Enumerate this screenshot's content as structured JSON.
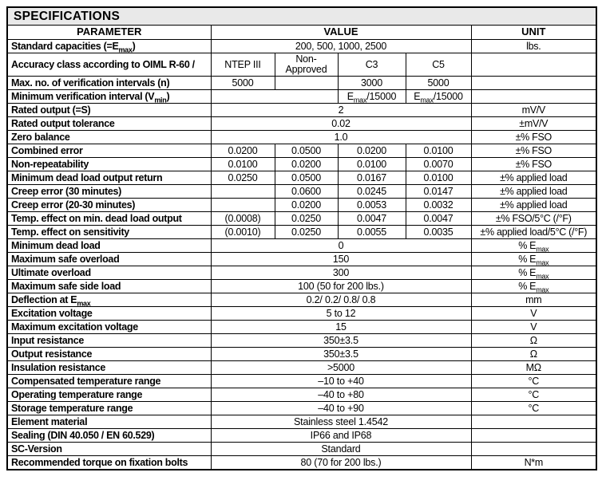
{
  "title": "SPECIFICATIONS",
  "colors": {
    "title_bg": "#e9e9e9",
    "border": "#000000",
    "text": "#000000",
    "page_bg": "#ffffff"
  },
  "table": {
    "headers": {
      "parameter": "PARAMETER",
      "value": "VALUE",
      "unit": "UNIT"
    },
    "rows": [
      {
        "param": "Standard capacities (=E_{max})",
        "cells": [
          {
            "text": "200, 500, 1000, 2500",
            "span": 4
          }
        ],
        "unit": "lbs."
      },
      {
        "param": "Accuracy class according to OIML R-60 /",
        "cells": [
          {
            "text": "NTEP III",
            "span": 1
          },
          {
            "text": "Non-Approved",
            "span": 1,
            "wrap": true
          },
          {
            "text": "C3",
            "span": 1
          },
          {
            "text": "C5",
            "span": 1
          }
        ],
        "unit": ""
      },
      {
        "param": "Max. no. of verification intervals (n)",
        "cells": [
          {
            "text": "5000",
            "span": 1
          },
          {
            "text": "",
            "span": 1
          },
          {
            "text": "3000",
            "span": 1
          },
          {
            "text": "5000",
            "span": 1
          }
        ],
        "unit": ""
      },
      {
        "param": "Minimum verification interval (V_{min})",
        "cells": [
          {
            "text": "",
            "span": 2
          },
          {
            "text": "E_{max}/15000",
            "span": 1
          },
          {
            "text": "E_{max}/15000",
            "span": 1
          }
        ],
        "unit": ""
      },
      {
        "param": "Rated output (=S)",
        "cells": [
          {
            "text": "2",
            "span": 4
          }
        ],
        "unit": "mV/V"
      },
      {
        "param": "Rated output tolerance",
        "cells": [
          {
            "text": "0.02",
            "span": 4
          }
        ],
        "unit": "±mV/V"
      },
      {
        "param": "Zero balance",
        "cells": [
          {
            "text": "1.0",
            "span": 4
          }
        ],
        "unit": "±% FSO"
      },
      {
        "param": "Combined error",
        "cells": [
          {
            "text": "0.0200",
            "span": 1
          },
          {
            "text": "0.0500",
            "span": 1
          },
          {
            "text": "0.0200",
            "span": 1
          },
          {
            "text": "0.0100",
            "span": 1
          }
        ],
        "unit": "±% FSO"
      },
      {
        "param": "Non-repeatability",
        "cells": [
          {
            "text": "0.0100",
            "span": 1
          },
          {
            "text": "0.0200",
            "span": 1
          },
          {
            "text": "0.0100",
            "span": 1
          },
          {
            "text": "0.0070",
            "span": 1
          }
        ],
        "unit": "±% FSO"
      },
      {
        "param": "Minimum dead load output return",
        "cells": [
          {
            "text": "0.0250",
            "span": 1
          },
          {
            "text": "0.0500",
            "span": 1
          },
          {
            "text": "0.0167",
            "span": 1
          },
          {
            "text": "0.0100",
            "span": 1
          }
        ],
        "unit": "±% applied load"
      },
      {
        "param": "Creep error (30 minutes)",
        "cells": [
          {
            "text": "",
            "span": 1
          },
          {
            "text": "0.0600",
            "span": 1
          },
          {
            "text": "0.0245",
            "span": 1
          },
          {
            "text": "0.0147",
            "span": 1
          }
        ],
        "unit": "±% applied load"
      },
      {
        "param": "Creep error (20-30 minutes)",
        "cells": [
          {
            "text": "",
            "span": 1
          },
          {
            "text": "0.0200",
            "span": 1
          },
          {
            "text": "0.0053",
            "span": 1
          },
          {
            "text": "0.0032",
            "span": 1
          }
        ],
        "unit": "±% applied load"
      },
      {
        "param": "Temp. effect on min. dead load output",
        "cells": [
          {
            "text": "(0.0008)",
            "span": 1
          },
          {
            "text": "0.0250",
            "span": 1
          },
          {
            "text": "0.0047",
            "span": 1
          },
          {
            "text": "0.0047",
            "span": 1
          }
        ],
        "unit": "±% FSO/5°C (/°F)"
      },
      {
        "param": "Temp. effect on sensitivity",
        "cells": [
          {
            "text": "(0.0010)",
            "span": 1
          },
          {
            "text": "0.0250",
            "span": 1
          },
          {
            "text": "0.0055",
            "span": 1
          },
          {
            "text": "0.0035",
            "span": 1
          }
        ],
        "unit": "±% applied load/5°C (/°F)"
      },
      {
        "param": "Minimum dead load",
        "cells": [
          {
            "text": "0",
            "span": 4
          }
        ],
        "unit": "% E_{max}"
      },
      {
        "param": "Maximum safe overload",
        "cells": [
          {
            "text": "150",
            "span": 4
          }
        ],
        "unit": "% E_{max}"
      },
      {
        "param": "Ultimate overload",
        "cells": [
          {
            "text": "300",
            "span": 4
          }
        ],
        "unit": "% E_{max}"
      },
      {
        "param": "Maximum safe side load",
        "cells": [
          {
            "text": "100 (50 for 200 lbs.)",
            "span": 4
          }
        ],
        "unit": "% E_{max}"
      },
      {
        "param": "Deflection at E_{max}",
        "cells": [
          {
            "text": "0.2/ 0.2/ 0.8/ 0.8",
            "span": 4
          }
        ],
        "unit": "mm"
      },
      {
        "param": "Excitation voltage",
        "cells": [
          {
            "text": "5 to 12",
            "span": 4
          }
        ],
        "unit": "V"
      },
      {
        "param": "Maximum excitation voltage",
        "cells": [
          {
            "text": "15",
            "span": 4
          }
        ],
        "unit": "V"
      },
      {
        "param": "Input resistance",
        "cells": [
          {
            "text": "350±3.5",
            "span": 4
          }
        ],
        "unit": "Ω"
      },
      {
        "param": "Output resistance",
        "cells": [
          {
            "text": "350±3.5",
            "span": 4
          }
        ],
        "unit": "Ω"
      },
      {
        "param": "Insulation resistance",
        "cells": [
          {
            "text": ">5000",
            "span": 4
          }
        ],
        "unit": "MΩ"
      },
      {
        "param": "Compensated temperature range",
        "cells": [
          {
            "text": "–10 to +40",
            "span": 4
          }
        ],
        "unit": "°C"
      },
      {
        "param": "Operating temperature range",
        "cells": [
          {
            "text": "–40 to +80",
            "span": 4
          }
        ],
        "unit": "°C"
      },
      {
        "param": "Storage temperature range",
        "cells": [
          {
            "text": "–40 to +90",
            "span": 4
          }
        ],
        "unit": "°C"
      },
      {
        "param": "Element material",
        "cells": [
          {
            "text": "Stainless steel 1.4542",
            "span": 4
          }
        ],
        "unit": ""
      },
      {
        "param": "Sealing (DIN 40.050 / EN 60.529)",
        "cells": [
          {
            "text": "IP66 and IP68",
            "span": 4
          }
        ],
        "unit": ""
      },
      {
        "param": "SC-Version",
        "cells": [
          {
            "text": "Standard",
            "span": 4
          }
        ],
        "unit": ""
      },
      {
        "param": "Recommended torque on fixation bolts",
        "cells": [
          {
            "text": "80 (70 for 200 lbs.)",
            "span": 4
          }
        ],
        "unit": "N*m"
      }
    ]
  }
}
